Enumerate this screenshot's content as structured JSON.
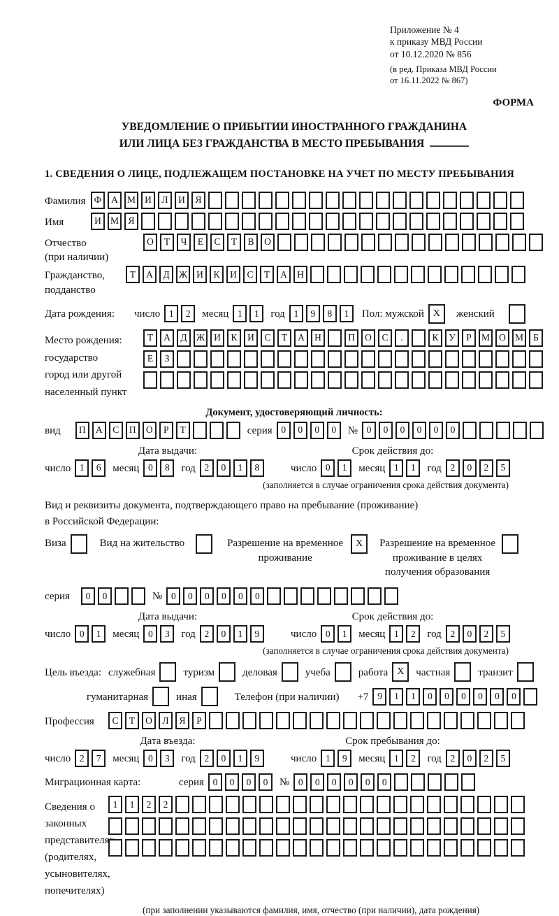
{
  "header": {
    "line1": "Приложение № 4",
    "line2": "к приказу МВД России",
    "line3": "от 10.12.2020 № 856",
    "rev1": "(в ред. Приказа МВД России",
    "rev2": "от 16.11.2022 № 867)",
    "forma": "ФОРМА"
  },
  "title": {
    "line1": "УВЕДОМЛЕНИЕ О ПРИБЫТИИ ИНОСТРАННОГО ГРАЖДАНИНА",
    "line2": "ИЛИ ЛИЦА БЕЗ ГРАЖДАНСТВА В МЕСТО ПРЕБЫВАНИЯ"
  },
  "section1": {
    "heading": "1. СВЕДЕНИЯ О ЛИЦЕ, ПОДЛЕЖАЩЕМ ПОСТАНОВКЕ НА УЧЕТ ПО МЕСТУ ПРЕБЫВАНИЯ",
    "surname": {
      "label": "Фамилия",
      "cells": {
        "v": "ФАМИЛИЯ",
        "n": 26
      }
    },
    "given_name": {
      "label": "Имя",
      "cells": {
        "v": "ИМЯ",
        "n": 26
      }
    },
    "patronymic": {
      "label1": "Отчество",
      "label2": "(при наличии)",
      "cells": {
        "v": "ОТЧЕСТВО",
        "n": 24
      }
    },
    "citizenship": {
      "label1": "Гражданство,",
      "label2": "подданство",
      "cells": {
        "v": "ТАДЖИКИСТАН",
        "n": 24
      }
    },
    "birth_date": {
      "label": "Дата рождения:",
      "day_label": "число",
      "month_label": "месяц",
      "year_label": "год",
      "day": {
        "v": "12",
        "n": 2
      },
      "month": {
        "v": "11",
        "n": 2
      },
      "year": {
        "v": "1981",
        "n": 4
      }
    },
    "gender": {
      "label": "Пол: мужской",
      "male": {
        "v": "X",
        "n": 1
      },
      "female_label": "женский",
      "female": {
        "v": "",
        "n": 1
      }
    },
    "birthplace": {
      "label1": "Место рождения:",
      "label2": "государство",
      "label3": "город или другой",
      "label4": "населенный пункт",
      "row1": {
        "v": "ТАДЖИКИСТАН ПОС. КУРМОМБ",
        "n": 24
      },
      "row2": {
        "v": "ЕЗ",
        "n": 24
      },
      "row3": {
        "v": "",
        "n": 24
      }
    },
    "identity_doc": {
      "heading": "Документ, удостоверяющий личность:",
      "kind_label": "вид",
      "kind": {
        "v": "ПАСПОРТ",
        "n": 10
      },
      "series_label": "серия",
      "series": {
        "v": "0000",
        "n": 4
      },
      "number_label": "№",
      "number": {
        "v": "000000",
        "n": 11
      },
      "issue_heading": "Дата выдачи:",
      "valid_heading": "Срок действия до:",
      "day_label": "число",
      "month_label": "месяц",
      "year_label": "год",
      "issue": {
        "day": {
          "v": "16",
          "n": 2
        },
        "month": {
          "v": "08",
          "n": 2
        },
        "year": {
          "v": "2018",
          "n": 4
        }
      },
      "valid": {
        "day": {
          "v": "01",
          "n": 2
        },
        "month": {
          "v": "11",
          "n": 2
        },
        "year": {
          "v": "2025",
          "n": 4
        }
      },
      "note": "(заполняется в случае ограничения срока действия документа)"
    },
    "residence_doc": {
      "intro1": "Вид и реквизиты документа, подтверждающего право на пребывание (проживание)",
      "intro2": "в Российской Федерации:",
      "opt1": {
        "label": "Виза",
        "box": {
          "v": "",
          "n": 1
        }
      },
      "opt2": {
        "label": "Вид на жительство",
        "box": {
          "v": "",
          "n": 1
        }
      },
      "opt3": {
        "label": "Разрешение на временное проживание",
        "box": {
          "v": "X",
          "n": 1
        }
      },
      "opt4": {
        "label": "Разрешение на временное проживание в целях получения образования",
        "box": {
          "v": "",
          "n": 1
        }
      },
      "series_label": "серия",
      "series": {
        "v": "00",
        "n": 4
      },
      "number_label": "№",
      "number": {
        "v": "000000",
        "n": 14
      },
      "issue_heading": "Дата выдачи:",
      "valid_heading": "Срок действия до:",
      "day_label": "число",
      "month_label": "месяц",
      "year_label": "год",
      "issue": {
        "day": {
          "v": "01",
          "n": 2
        },
        "month": {
          "v": "03",
          "n": 2
        },
        "year": {
          "v": "2019",
          "n": 4
        }
      },
      "valid": {
        "day": {
          "v": "01",
          "n": 2
        },
        "month": {
          "v": "12",
          "n": 2
        },
        "year": {
          "v": "2025",
          "n": 4
        }
      },
      "note": "(заполняется в случае ограничения срока действия документа)"
    },
    "purpose": {
      "label": "Цель въезда:",
      "opt_sluzhebnaya": {
        "label": "служебная",
        "box": {
          "v": "",
          "n": 1
        }
      },
      "opt_turizm": {
        "label": "туризм",
        "box": {
          "v": "",
          "n": 1
        }
      },
      "opt_delovaya": {
        "label": "деловая",
        "box": {
          "v": "",
          "n": 1
        }
      },
      "opt_ucheba": {
        "label": "учеба",
        "box": {
          "v": "",
          "n": 1
        }
      },
      "opt_rabota": {
        "label": "работа",
        "box": {
          "v": "X",
          "n": 1
        }
      },
      "opt_chastnaya": {
        "label": "частная",
        "box": {
          "v": "",
          "n": 1
        }
      },
      "opt_tranzit": {
        "label": "транзит",
        "box": {
          "v": "",
          "n": 1
        }
      },
      "opt_gumanitarnaya": {
        "label": "гуманитарная",
        "box": {
          "v": "",
          "n": 1
        }
      },
      "opt_inaya": {
        "label": "иная",
        "box": {
          "v": "",
          "n": 1
        }
      },
      "phone_label": "Телефон (при наличии)",
      "phone_prefix": "+7",
      "phone": {
        "v": "911000000",
        "n": 10
      }
    },
    "profession": {
      "label": "Профессия",
      "cells": {
        "v": "СТОЛЯР",
        "n": 25
      }
    },
    "entry": {
      "issue_heading": "Дата въезда:",
      "stay_heading": "Срок пребывания до:",
      "day_label": "число",
      "month_label": "месяц",
      "year_label": "год",
      "issue": {
        "day": {
          "v": "27",
          "n": 2
        },
        "month": {
          "v": "03",
          "n": 2
        },
        "year": {
          "v": "2019",
          "n": 4
        }
      },
      "stay": {
        "day": {
          "v": "19",
          "n": 2
        },
        "month": {
          "v": "12",
          "n": 2
        },
        "year": {
          "v": "2025",
          "n": 4
        }
      }
    },
    "migration_card": {
      "label": "Миграционная карта:",
      "series_label": "серия",
      "series": {
        "v": "0000",
        "n": 4
      },
      "number_label": "№",
      "number": {
        "v": "000000",
        "n": 11
      }
    },
    "representatives": {
      "label1": "Сведения о",
      "label2": "законных",
      "label3": "представителях",
      "label4": "(родителях,",
      "label5": "усыновителях,",
      "label6": "попечителях)",
      "row1": {
        "v": "1122",
        "n": 25
      },
      "row2": {
        "v": "",
        "n": 25
      },
      "row3": {
        "v": "",
        "n": 25
      },
      "note": "(при заполнении указываются фамилия, имя, отчество (при наличии), дата рождения)"
    }
  }
}
